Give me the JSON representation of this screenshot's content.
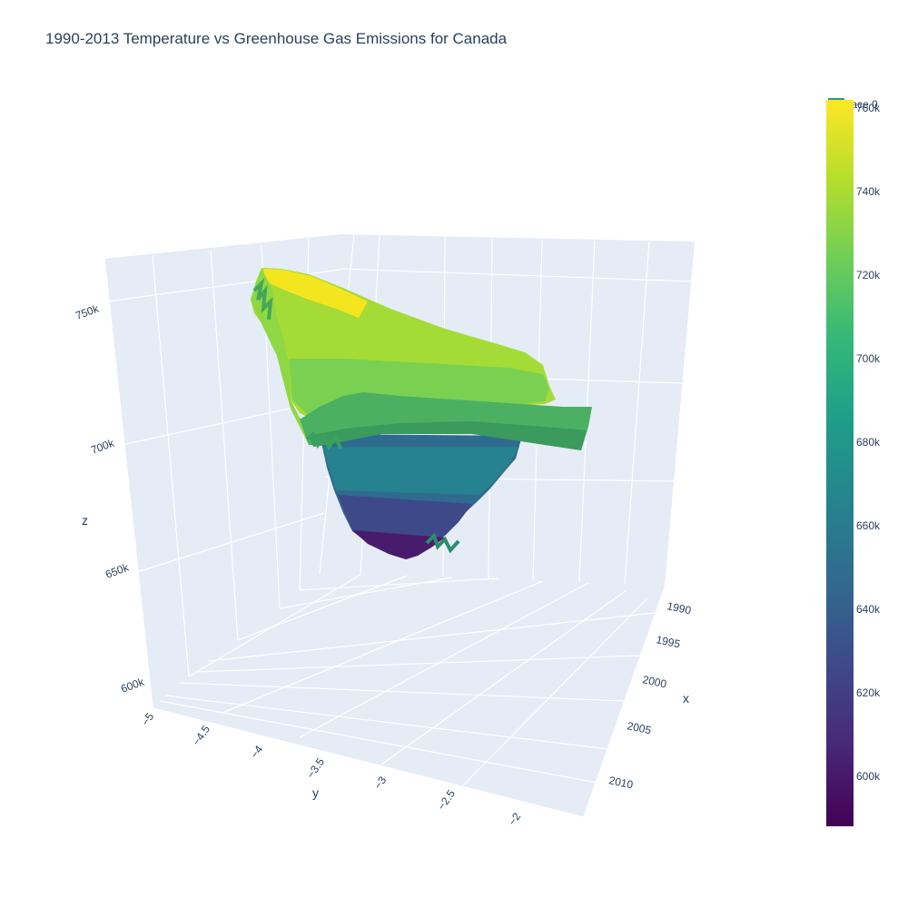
{
  "chart_data": {
    "type": "surface",
    "title": "1990-2013 Temperature vs Greenhouse Gas Emissions for Canada",
    "xlabel": "x",
    "ylabel": "y",
    "zlabel": "z",
    "x_ticks": [
      "1990",
      "1995",
      "2000",
      "2005",
      "2010"
    ],
    "y_ticks": [
      "−5",
      "−4.5",
      "−4",
      "−3.5",
      "−3",
      "−2.5",
      "−2"
    ],
    "z_ticks": [
      "600k",
      "650k",
      "700k",
      "750k"
    ],
    "xlim": [
      1990,
      2013
    ],
    "ylim": [
      -5,
      -1.8
    ],
    "zlim": [
      585000,
      765000
    ],
    "colorscale": "Viridis",
    "colorbar_ticks": [
      "600k",
      "620k",
      "640k",
      "660k",
      "680k",
      "700k",
      "720k",
      "740k",
      "760k"
    ],
    "colorbar_range": [
      588000,
      762000
    ],
    "legend": [
      "trace 0"
    ],
    "colors": {
      "grid_plane": "#e5ecf6",
      "grid_line": "#ffffff",
      "text": "#2a3f5f",
      "viridis": [
        "#440154",
        "#482878",
        "#3e4989",
        "#31688e",
        "#26828e",
        "#1f9e89",
        "#35b779",
        "#6ece58",
        "#b5de2b",
        "#fde725"
      ]
    }
  }
}
